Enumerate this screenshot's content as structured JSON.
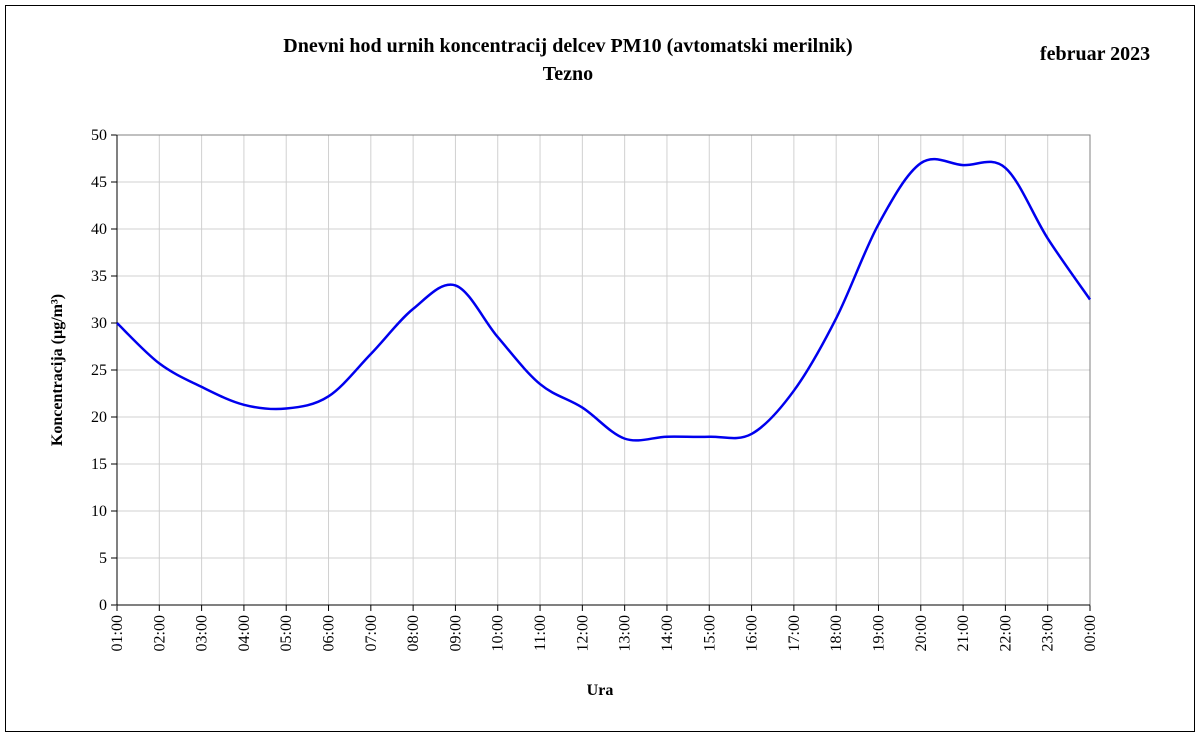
{
  "chart_data": {
    "type": "line",
    "title": "Dnevni hod urnih koncentracij  delcev PM10 (avtomatski merilnik)",
    "subtitle": "Tezno",
    "annotation": "februar 2023",
    "x_label": "Ura",
    "y_label": "Koncentracija (µg/m³)",
    "categories": [
      "01:00",
      "02:00",
      "03:00",
      "04:00",
      "05:00",
      "06:00",
      "07:00",
      "08:00",
      "09:00",
      "10:00",
      "11:00",
      "12:00",
      "13:00",
      "14:00",
      "15:00",
      "16:00",
      "17:00",
      "18:00",
      "19:00",
      "20:00",
      "21:00",
      "22:00",
      "23:00",
      "00:00"
    ],
    "series": [
      {
        "name": "PM10",
        "color": "#0000ee",
        "values": [
          30,
          25.7,
          23.2,
          21.3,
          20.9,
          22.2,
          26.7,
          31.5,
          34,
          28.5,
          23.5,
          21,
          17.7,
          17.9,
          17.9,
          18.2,
          22.8,
          30.5,
          40.5,
          47,
          46.8,
          46.5,
          39,
          32.5
        ]
      }
    ],
    "ylim": [
      0,
      50
    ],
    "yticks": [
      0,
      5,
      10,
      15,
      20,
      25,
      30,
      35,
      40,
      45,
      50
    ],
    "grid": true,
    "smooth": true
  }
}
